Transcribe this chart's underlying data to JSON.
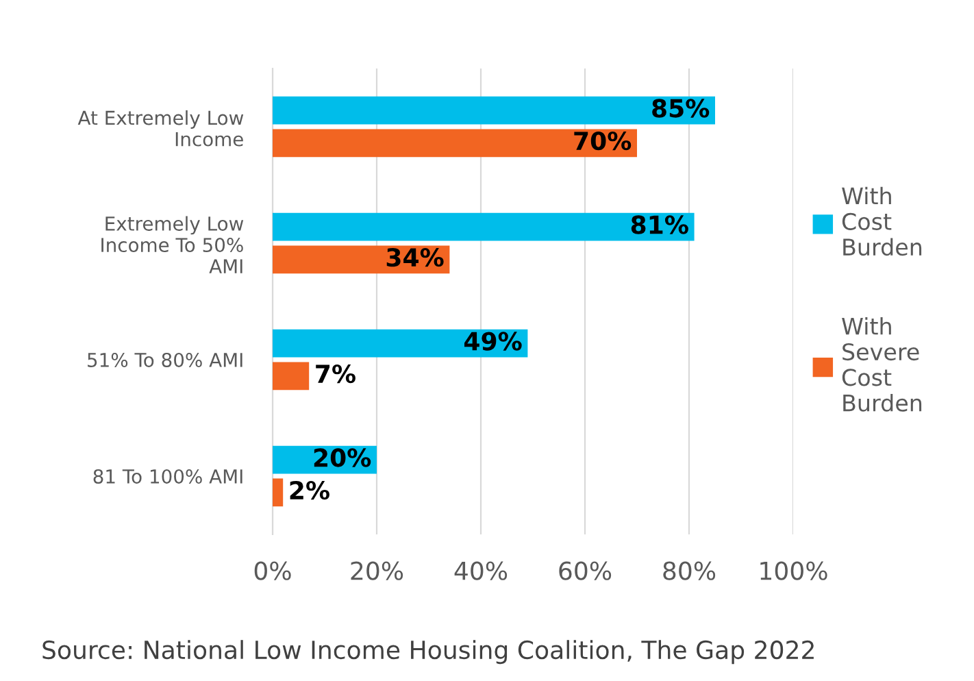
{
  "chart_data": {
    "type": "bar",
    "orientation": "horizontal",
    "categories": [
      "At Extremely Low Income",
      "Extremely Low Income To 50% AMI",
      "51% To 80% AMI",
      "81 To 100% AMI"
    ],
    "series": [
      {
        "name": "With Cost Burden",
        "color": "#00bdea",
        "values": [
          85,
          81,
          49,
          20
        ],
        "value_labels": [
          "85%",
          "81%",
          "49%",
          "20%"
        ]
      },
      {
        "name": "With Severe Cost Burden",
        "color": "#f26522",
        "values": [
          70,
          34,
          7,
          2
        ],
        "value_labels": [
          "70%",
          "34%",
          "7%",
          "2%"
        ]
      }
    ],
    "xlim": [
      0,
      100
    ],
    "xticks": [
      {
        "value": 0,
        "label": "0%"
      },
      {
        "value": 20,
        "label": "20%"
      },
      {
        "value": 40,
        "label": "40%"
      },
      {
        "value": 60,
        "label": "60%"
      },
      {
        "value": 80,
        "label": "80%"
      },
      {
        "value": 100,
        "label": "100%"
      }
    ],
    "grid": "x",
    "legend": "right",
    "annotations": [
      "Source: National Low Income Housing Coalition, The Gap 2022"
    ]
  }
}
